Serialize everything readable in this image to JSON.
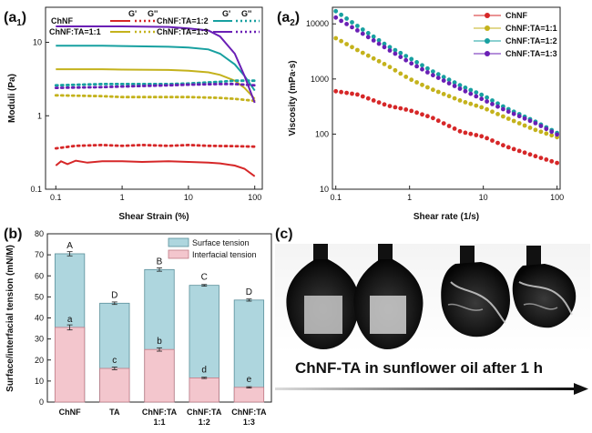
{
  "panels": {
    "a1": {
      "label": "(a",
      "sub": "1",
      "close": ")"
    },
    "a2": {
      "label": "(a",
      "sub": "2",
      "close": ")"
    },
    "b": {
      "label": "(b)"
    },
    "c": {
      "label": "(c)"
    }
  },
  "colors": {
    "ChNF": "#d62728",
    "ChNF_TA_1_1": "#c4b21c",
    "ChNF_TA_1_2": "#17a0a0",
    "ChNF_TA_1_3": "#6a1fb5",
    "surface_bar": "#aed6de",
    "interfacial_bar": "#f3c6cd"
  },
  "caption_c": "ChNF-TA in sunflower oil after 1 h",
  "chart_data": [
    {
      "id": "a1",
      "type": "line",
      "xscale": "log",
      "yscale": "log",
      "xlabel": "Shear Strain (%)",
      "ylabel": "Moduli (Pa)",
      "xlim": [
        0.07,
        130
      ],
      "ylim": [
        0.1,
        30
      ],
      "xticks": [
        {
          "v": 0.1,
          "t": "0.1"
        },
        {
          "v": 1,
          "t": "1"
        },
        {
          "v": 10,
          "t": "10"
        },
        {
          "v": 100,
          "t": "100"
        }
      ],
      "yticks": [
        {
          "v": 0.1,
          "t": "0.1"
        },
        {
          "v": 1,
          "t": "1"
        },
        {
          "v": 10,
          "t": "10"
        }
      ],
      "legend": {
        "gp_label": "G'",
        "gpp_label": "G''",
        "entries": [
          "ChNF",
          "ChNF:TA=1:1",
          "ChNF:TA=1:2",
          "ChNF:TA=1:3"
        ]
      },
      "series": [
        {
          "name": "ChNF G'",
          "style": "solid",
          "color": "#d62728",
          "x": [
            0.1,
            0.12,
            0.15,
            0.2,
            0.3,
            0.5,
            1,
            2,
            5,
            10,
            20,
            30,
            50,
            70,
            100
          ],
          "y": [
            0.21,
            0.24,
            0.22,
            0.245,
            0.23,
            0.24,
            0.24,
            0.235,
            0.24,
            0.235,
            0.23,
            0.225,
            0.21,
            0.19,
            0.15
          ]
        },
        {
          "name": "ChNF G''",
          "style": "dotted",
          "color": "#d62728",
          "x": [
            0.1,
            0.2,
            0.5,
            1,
            2,
            5,
            10,
            20,
            50,
            100
          ],
          "y": [
            0.36,
            0.39,
            0.4,
            0.39,
            0.4,
            0.39,
            0.4,
            0.39,
            0.385,
            0.38
          ]
        },
        {
          "name": "ChNF:TA=1:1 G'",
          "style": "solid",
          "color": "#c4b21c",
          "x": [
            0.1,
            0.5,
            1,
            5,
            10,
            20,
            30,
            50,
            70,
            100
          ],
          "y": [
            4.3,
            4.3,
            4.25,
            4.2,
            4.1,
            3.9,
            3.6,
            3.0,
            2.4,
            1.7
          ]
        },
        {
          "name": "ChNF:TA=1:1 G''",
          "style": "dotted",
          "color": "#c4b21c",
          "x": [
            0.1,
            0.5,
            1,
            5,
            10,
            30,
            50,
            100
          ],
          "y": [
            1.9,
            1.85,
            1.8,
            1.8,
            1.8,
            1.75,
            1.7,
            1.6
          ]
        },
        {
          "name": "ChNF:TA=1:2 G'",
          "style": "solid",
          "color": "#17a0a0",
          "x": [
            0.1,
            0.5,
            1,
            5,
            10,
            20,
            30,
            50,
            70,
            100
          ],
          "y": [
            9,
            9,
            8.9,
            8.7,
            8.5,
            8.0,
            7.0,
            5.0,
            3.5,
            2.2
          ]
        },
        {
          "name": "ChNF:TA=1:2 G''",
          "style": "dotted",
          "color": "#17a0a0",
          "x": [
            0.1,
            0.5,
            1,
            5,
            10,
            30,
            50,
            100
          ],
          "y": [
            2.6,
            2.7,
            2.7,
            2.7,
            2.75,
            2.9,
            3.0,
            3.0
          ]
        },
        {
          "name": "ChNF:TA=1:3 G'",
          "style": "solid",
          "color": "#6a1fb5",
          "x": [
            0.1,
            0.5,
            1,
            5,
            10,
            20,
            30,
            50,
            70,
            100
          ],
          "y": [
            16.5,
            16.5,
            16.5,
            16.2,
            15.5,
            14.5,
            12,
            7,
            3.5,
            1.5
          ]
        },
        {
          "name": "ChNF:TA=1:3 G''",
          "style": "dotted",
          "color": "#6a1fb5",
          "x": [
            0.1,
            0.5,
            1,
            5,
            10,
            30,
            50,
            100
          ],
          "y": [
            2.4,
            2.45,
            2.5,
            2.6,
            2.65,
            2.7,
            2.7,
            2.6
          ]
        }
      ]
    },
    {
      "id": "a2",
      "type": "scatter",
      "xscale": "log",
      "yscale": "log",
      "xlabel": "Shear rate (1/s)",
      "ylabel": "Viscosity (mPa·s)",
      "xlim": [
        0.09,
        110
      ],
      "ylim": [
        10,
        20000
      ],
      "xticks": [
        {
          "v": 0.1,
          "t": "0.1"
        },
        {
          "v": 1,
          "t": "1"
        },
        {
          "v": 10,
          "t": "10"
        },
        {
          "v": 100,
          "t": "100"
        }
      ],
      "yticks": [
        {
          "v": 10,
          "t": "10"
        },
        {
          "v": 100,
          "t": "100"
        },
        {
          "v": 1000,
          "t": "1000"
        },
        {
          "v": 10000,
          "t": "10000"
        }
      ],
      "series": [
        {
          "name": "ChNF",
          "color": "#d62728",
          "x": [
            0.1,
            0.2,
            0.5,
            1,
            2,
            5,
            10,
            20,
            50,
            100
          ],
          "y": [
            600,
            520,
            330,
            270,
            200,
            110,
            90,
            60,
            40,
            30
          ]
        },
        {
          "name": "ChNF:TA=1:1",
          "color": "#c4b21c",
          "x": [
            0.1,
            0.2,
            0.5,
            1,
            2,
            5,
            10,
            20,
            50,
            100
          ],
          "y": [
            5500,
            3300,
            1750,
            1000,
            650,
            400,
            300,
            200,
            120,
            88
          ]
        },
        {
          "name": "ChNF:TA=1:2",
          "color": "#17a0a0",
          "x": [
            0.1,
            0.2,
            0.5,
            1,
            2,
            5,
            10,
            20,
            50,
            100
          ],
          "y": [
            17000,
            9000,
            4000,
            2400,
            1400,
            750,
            500,
            300,
            170,
            105
          ]
        },
        {
          "name": "ChNF:TA=1:3",
          "color": "#6a1fb5",
          "x": [
            0.1,
            0.2,
            0.5,
            1,
            2,
            5,
            10,
            20,
            50,
            100
          ],
          "y": [
            13000,
            7500,
            3500,
            2000,
            1200,
            650,
            420,
            270,
            160,
            98
          ]
        }
      ]
    },
    {
      "id": "b",
      "type": "bar",
      "ylabel": "Surface/interfacial tension (mN/M)",
      "ylim": [
        0,
        80
      ],
      "yticks": [
        0,
        10,
        20,
        30,
        40,
        50,
        60,
        70,
        80
      ],
      "categories": [
        {
          "line1": "ChNF",
          "line2": ""
        },
        {
          "line1": "TA",
          "line2": ""
        },
        {
          "line1": "ChNF:TA",
          "line2": "1:1"
        },
        {
          "line1": "ChNF:TA",
          "line2": "1:2"
        },
        {
          "line1": "ChNF:TA",
          "line2": "1:3"
        }
      ],
      "series": [
        {
          "name": "Surface tension",
          "color": "#aed6de",
          "values": [
            70.5,
            47,
            63,
            55.5,
            48.5
          ],
          "errors": [
            1.0,
            0.6,
            0.8,
            0.4,
            0.5
          ],
          "letters": [
            "A",
            "D",
            "B",
            "C",
            "D"
          ]
        },
        {
          "name": "Interfacial tension",
          "color": "#f3c6cd",
          "values": [
            35.5,
            16,
            25,
            11.5,
            7
          ],
          "errors": [
            1.2,
            0.6,
            0.8,
            0.3,
            0.3
          ],
          "letters": [
            "a",
            "c",
            "b",
            "d",
            "e"
          ]
        }
      ]
    }
  ]
}
